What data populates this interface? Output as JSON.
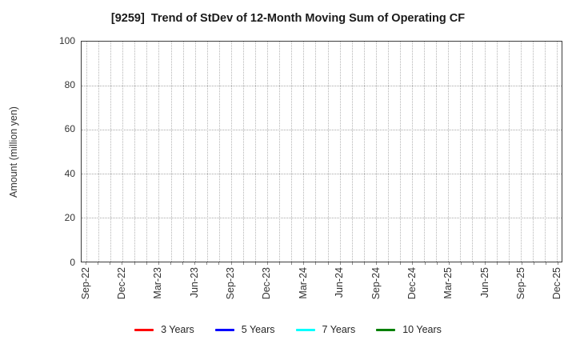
{
  "title": "[9259]  Trend of StDev of 12-Month Moving Sum of Operating CF",
  "y_axis": {
    "label": "Amount (million yen)",
    "tick_labels": [
      "0",
      "20",
      "40",
      "60",
      "80",
      "100"
    ],
    "min": 0,
    "max": 100
  },
  "x_axis": {
    "tick_labels": [
      "Sep-22",
      "Dec-22",
      "Mar-23",
      "Jun-23",
      "Sep-23",
      "Dec-23",
      "Mar-24",
      "Jun-24",
      "Sep-24",
      "Dec-24",
      "Mar-25",
      "Jun-25",
      "Sep-25",
      "Dec-25"
    ],
    "months_total": 40,
    "label_every_n_months": 3
  },
  "legend": {
    "items": [
      {
        "label": "3 Years",
        "color": "#ff0000"
      },
      {
        "label": "5 Years",
        "color": "#0000ff"
      },
      {
        "label": "7 Years",
        "color": "#00ffff"
      },
      {
        "label": "10 Years",
        "color": "#008000"
      }
    ]
  },
  "colors": {
    "grid": "#b5b5b5",
    "spine": "#3d3d3d",
    "tick_text": "#333333",
    "title_text": "#1a1a1a"
  },
  "chart_data": {
    "type": "line",
    "title": "[9259]  Trend of StDev of 12-Month Moving Sum of Operating CF",
    "xlabel": "",
    "ylabel": "Amount (million yen)",
    "ylim": [
      0,
      100
    ],
    "yticks": [
      0,
      20,
      40,
      60,
      80,
      100
    ],
    "x": [
      "Sep-22",
      "Dec-22",
      "Mar-23",
      "Jun-23",
      "Sep-23",
      "Dec-23",
      "Mar-24",
      "Jun-24",
      "Sep-24",
      "Dec-24",
      "Mar-25",
      "Jun-25",
      "Sep-25",
      "Dec-25"
    ],
    "grid": true,
    "grid_style": "dotted",
    "legend_position": "bottom-center",
    "series": [
      {
        "name": "3 Years",
        "color": "#ff0000",
        "values": []
      },
      {
        "name": "5 Years",
        "color": "#0000ff",
        "values": []
      },
      {
        "name": "7 Years",
        "color": "#00ffff",
        "values": []
      },
      {
        "name": "10 Years",
        "color": "#008000",
        "values": []
      }
    ],
    "note": "no data lines are drawn in the plot area (empty chart)"
  }
}
